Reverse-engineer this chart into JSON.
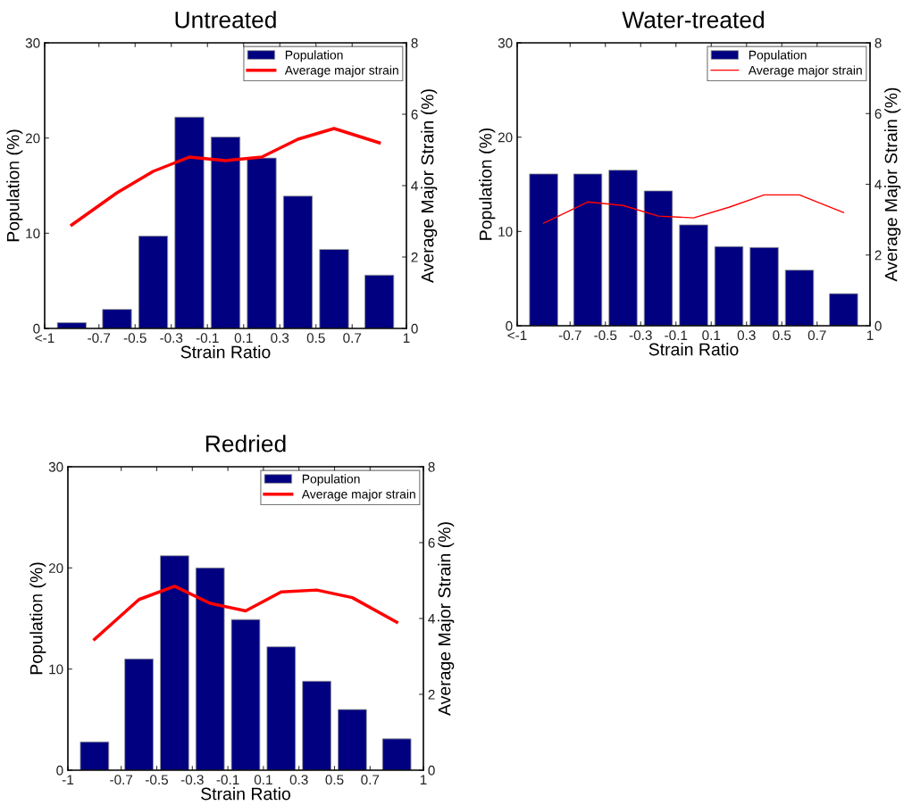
{
  "chart_data": [
    {
      "type": "bar",
      "title": "Untreated",
      "xlabel": "Strain Ratio",
      "ylabel": "Population (%)",
      "y2label": "Average Major Strain (%)",
      "x": [
        -0.85,
        -0.6,
        -0.4,
        -0.2,
        0,
        0.2,
        0.4,
        0.6,
        0.85
      ],
      "series": [
        {
          "name": "Population",
          "color": "#000080",
          "values": [
            0.6,
            2.0,
            9.7,
            22.2,
            20.1,
            17.9,
            13.9,
            8.3,
            5.6
          ]
        },
        {
          "name": "Average major strain",
          "type": "line",
          "axis": "y2",
          "color": "#ff0000",
          "values": [
            2.9,
            3.8,
            4.4,
            4.8,
            4.7,
            4.8,
            5.3,
            5.6,
            5.2
          ]
        }
      ],
      "xlim": [
        -1,
        1
      ],
      "xticks": [
        {
          "value": -1,
          "label": "<-1"
        },
        -0.7,
        -0.5,
        -0.3,
        -0.1,
        0.1,
        0.3,
        0.5,
        0.7,
        1
      ],
      "ylim": [
        0,
        30
      ],
      "yticks": [
        0,
        10,
        20,
        30
      ],
      "y2lim": [
        0,
        8
      ],
      "y2ticks": [
        0,
        2,
        4,
        6,
        8
      ],
      "grid": false,
      "legend": "top right"
    },
    {
      "type": "bar",
      "title": "Water-treated",
      "xlabel": "Strain Ratio",
      "ylabel": "Population (%)",
      "y2label": "Average Major Strain (%)",
      "x": [
        -0.85,
        -0.6,
        -0.4,
        -0.2,
        0,
        0.2,
        0.4,
        0.6,
        0.85
      ],
      "series": [
        {
          "name": "Population",
          "color": "#000080",
          "values": [
            16.1,
            16.1,
            16.5,
            14.3,
            10.7,
            8.4,
            8.3,
            5.9,
            3.4
          ]
        },
        {
          "name": "Average major strain",
          "type": "line",
          "axis": "y2",
          "color": "#ff0000",
          "values": [
            2.9,
            3.5,
            3.4,
            3.1,
            3.05,
            3.35,
            3.7,
            3.7,
            3.2
          ]
        }
      ],
      "xlim": [
        -1,
        1
      ],
      "xticks": [
        {
          "value": -1,
          "label": "<-1"
        },
        -0.7,
        -0.5,
        -0.3,
        -0.1,
        0.1,
        0.3,
        0.5,
        0.7,
        1
      ],
      "ylim": [
        0,
        30
      ],
      "yticks": [
        0,
        10,
        20,
        30
      ],
      "y2lim": [
        0,
        8
      ],
      "y2ticks": [
        0,
        2,
        4,
        6,
        8
      ],
      "grid": false,
      "legend": "top right"
    },
    {
      "type": "bar",
      "title": "Redried",
      "xlabel": "Strain Ratio",
      "ylabel": "Population (%)",
      "y2label": "Average Major Strain (%)",
      "x": [
        -0.85,
        -0.6,
        -0.4,
        -0.2,
        0,
        0.2,
        0.4,
        0.6,
        0.85
      ],
      "series": [
        {
          "name": "Population",
          "color": "#000080",
          "values": [
            2.8,
            11.0,
            21.2,
            20.0,
            14.9,
            12.2,
            8.8,
            6.0,
            3.1
          ]
        },
        {
          "name": "Average major strain",
          "type": "line",
          "axis": "y2",
          "color": "#ff0000",
          "values": [
            3.45,
            4.5,
            4.85,
            4.4,
            4.2,
            4.7,
            4.75,
            4.55,
            3.9
          ]
        }
      ],
      "xlim": [
        -1,
        1
      ],
      "xticks": [
        -1,
        -0.7,
        -0.5,
        -0.3,
        -0.1,
        0.1,
        0.3,
        0.5,
        0.7,
        1
      ],
      "ylim": [
        0,
        30
      ],
      "yticks": [
        0,
        10,
        20,
        30
      ],
      "y2lim": [
        0,
        8
      ],
      "y2ticks": [
        0,
        2,
        4,
        6,
        8
      ],
      "grid": false,
      "legend": "top right"
    }
  ]
}
